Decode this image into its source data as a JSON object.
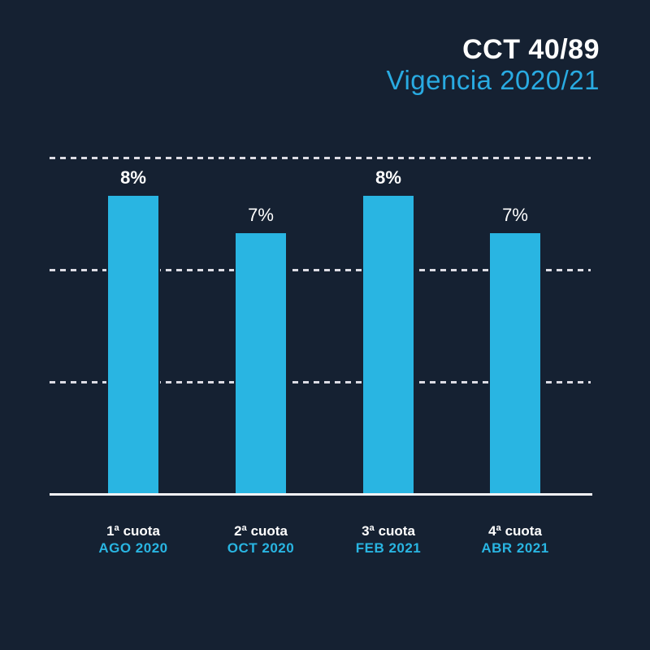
{
  "page": {
    "background_color": "#152132"
  },
  "header": {
    "title": "CCT 40/89",
    "subtitle": "Vigencia 2020/21",
    "title_color": "#FFFFFF",
    "subtitle_color": "#29ABE2"
  },
  "chart_data": {
    "type": "bar",
    "title": "CCT 40/89",
    "subtitle": "Vigencia 2020/21",
    "categories": [
      "1ª cuota",
      "2ª cuota",
      "3ª cuota",
      "4ª cuota"
    ],
    "x_sub_labels": [
      "AGO 2020",
      "OCT 2020",
      "FEB 2021",
      "ABR 2021"
    ],
    "values": [
      8,
      7,
      8,
      7
    ],
    "value_labels": [
      "8%",
      "7%",
      "8%",
      "7%"
    ],
    "value_label_bold": [
      true,
      false,
      true,
      false
    ],
    "ylabel": "",
    "xlabel": "",
    "ylim": [
      0,
      9
    ],
    "gridline_values": [
      3,
      6,
      9
    ],
    "gridline_style": "dashed",
    "legend": "none",
    "bar_color": "#29B5E2",
    "gridline_color": "#DCDCE4",
    "baseline_color": "#F4F4F6",
    "value_label_color": "#FFFFFF",
    "category_color": "#FFFFFF",
    "date_color": "#29B5E2"
  }
}
